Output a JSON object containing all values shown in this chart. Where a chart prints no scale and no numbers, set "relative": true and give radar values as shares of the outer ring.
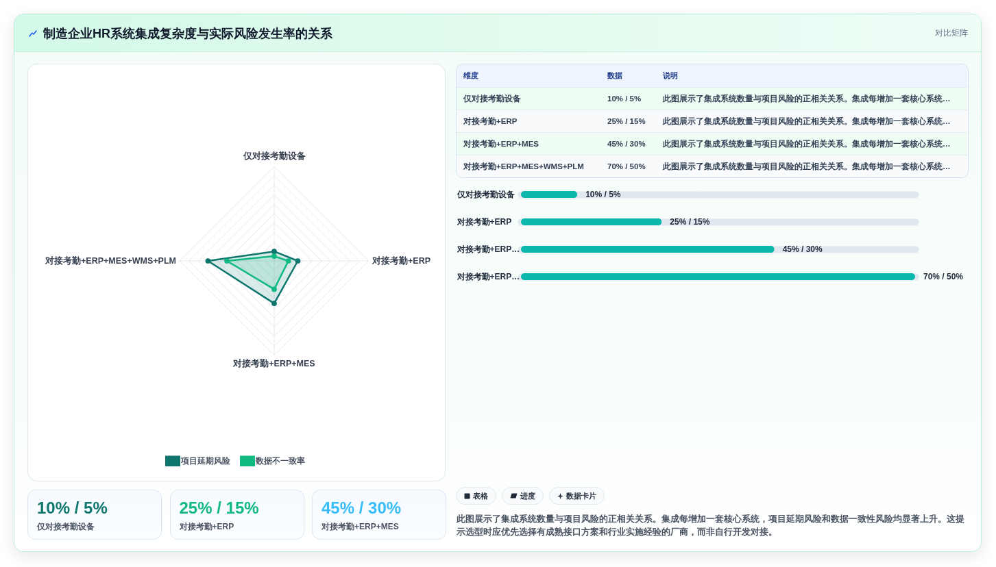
{
  "chart_data": [
    {
      "type": "radar",
      "title": "制造企业HR系统集成复杂度与实际风险发生率的关系",
      "categories": [
        "仅对接考勤设备",
        "对接考勤+ERP",
        "对接考勤+ERP+MES",
        "对接考勤+ERP+MES+WMS+PLM"
      ],
      "series": [
        {
          "name": "项目延期风险",
          "color": "#0f766e",
          "values": [
            0.1,
            0.25,
            0.45,
            0.7
          ]
        },
        {
          "name": "数据不一致率",
          "color": "#10b981",
          "values": [
            0.05,
            0.15,
            0.3,
            0.5
          ]
        }
      ],
      "relative": true,
      "grid": true,
      "legend": "bottom",
      "marker": "circle"
    },
    {
      "type": "other",
      "title": "对比矩阵",
      "annotations": [
        "维度",
        "数据",
        "说明",
        "仅对接考勤设备",
        "10% / 5%",
        "此图展示了集成系统数量与项目风险的正相关关系。集成每增加一套核心系统…",
        "对接考勤+ERP",
        "25% / 15%",
        "此图展示了集成系统数量与项目风险的正相关关系。集成每增加一套核心系统…",
        "对接考勤+ERP+MES",
        "45% / 30%",
        "此图展示了集成系统数量与项目风险的正相关关系。集成每增加一套核心系统…",
        "对接考勤+ERP+MES+WMS+PLM",
        "70% / 50%",
        "此图展示了集成系统数量与项目风险的正相关关系。集成每增加一套核心系统…"
      ]
    },
    {
      "type": "bar",
      "orientation": "horizontal",
      "categories": [
        "仅对接考勤设备",
        "对接考勤+ERP",
        "对接考勤+ERP…",
        "对接考勤+ERP…"
      ],
      "values": [
        10,
        25,
        45,
        70
      ],
      "value_labels": [
        "10% / 5%",
        "25% / 15%",
        "45% / 30%",
        "70% / 50%"
      ],
      "color": "#0bb7aa",
      "grid": "y",
      "tick_labels": "y"
    },
    {
      "type": "other",
      "annotations": [
        "10% / 5%",
        "仅对接考勤设备",
        "25% / 15%",
        "对接考勤+ERP",
        "45% / 30%",
        "对接考勤+ERP+MES"
      ],
      "colors": [
        "#0f766e",
        "#10b981",
        "#38bdf8"
      ]
    },
    {
      "type": "other",
      "annotations": [
        "表格",
        "进度",
        "数据卡片",
        "此图展示了集成系统数量与项目风险的正相关关系。集成每增加一套核心系统，项目延期风险和数据一致性风险均显著上升。这提示选型时应优先选择有成熟接口方案和行业实施经验的厂商，而非自行开发对接。"
      ]
    }
  ]
}
